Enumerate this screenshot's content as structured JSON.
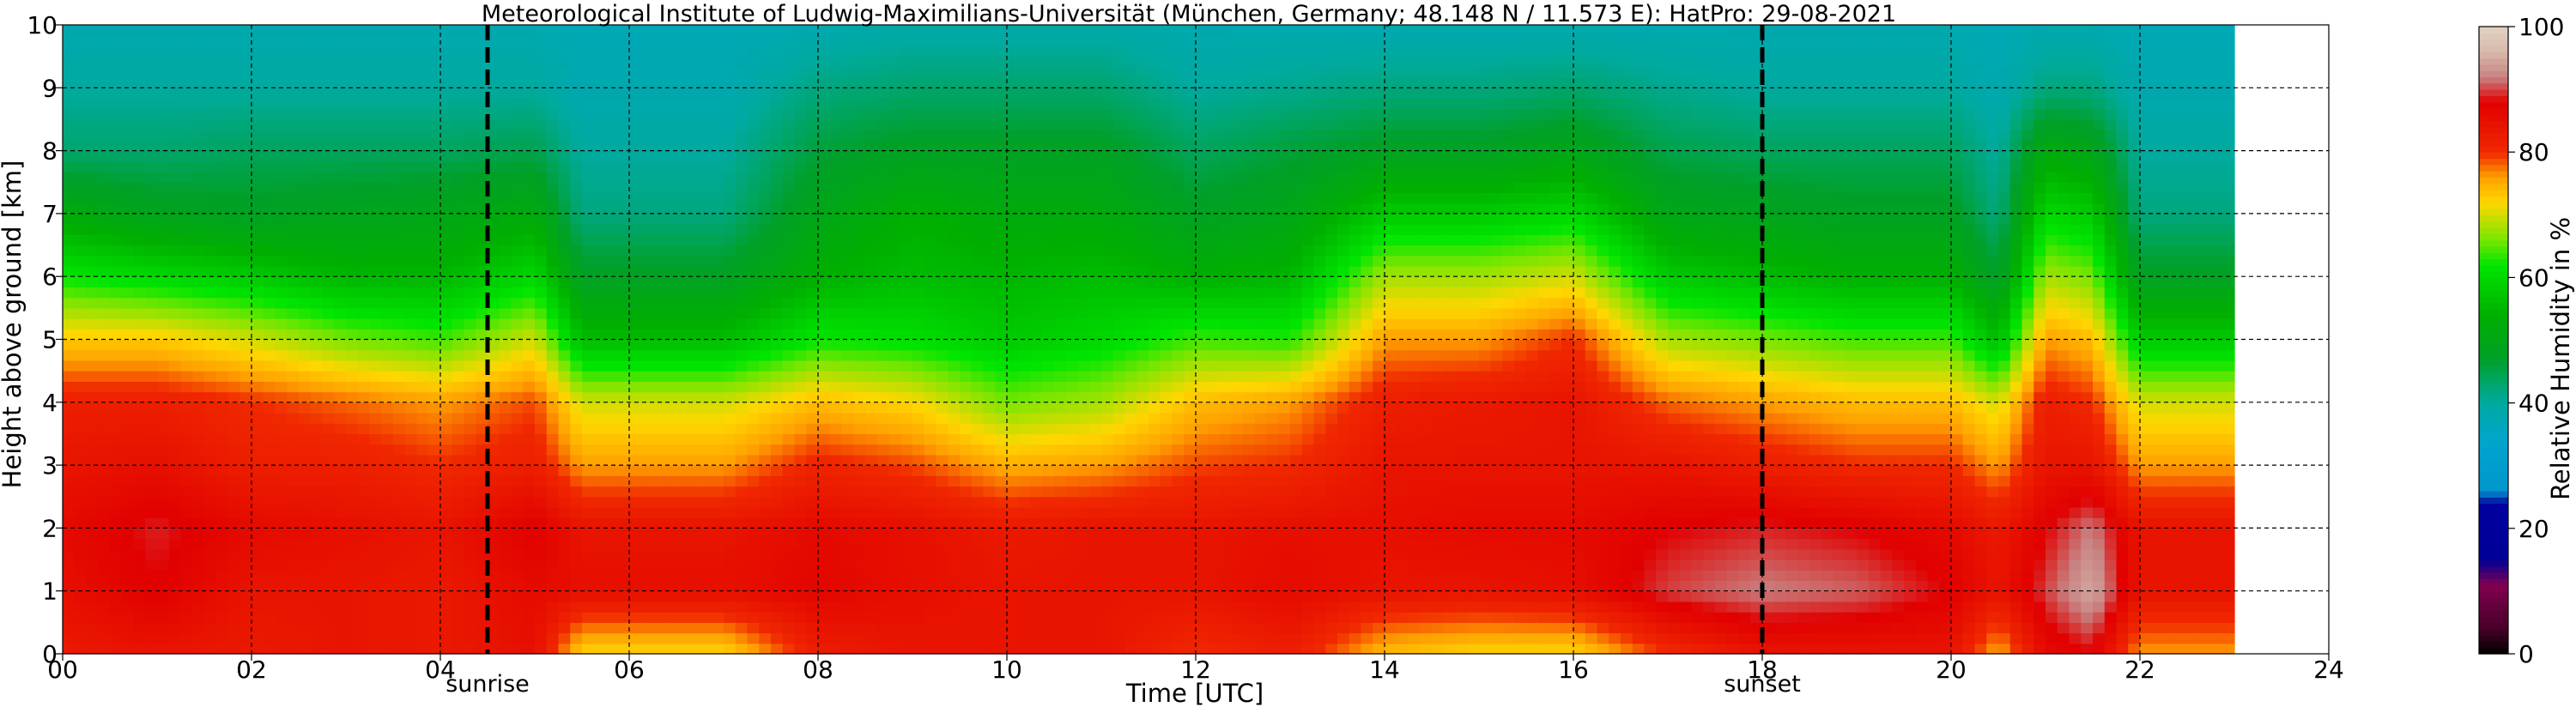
{
  "chart_data": {
    "type": "heatmap",
    "title": "Meteorological Institute of Ludwig-Maximilians-Universität (München, Germany; 48.148 N / 11.573 E):    HatPro: 29-08-2021",
    "xlabel": "Time [UTC]",
    "ylabel": "Height above ground [km]",
    "xlim": [
      0,
      24
    ],
    "ylim": [
      0,
      10
    ],
    "x_ticks": [
      0,
      2,
      4,
      6,
      8,
      10,
      12,
      14,
      16,
      18,
      20,
      22,
      24
    ],
    "x_tick_labels": [
      "00",
      "02",
      "04",
      "06",
      "08",
      "10",
      "12",
      "14",
      "16",
      "18",
      "20",
      "22",
      "24"
    ],
    "y_ticks": [
      0,
      1,
      2,
      3,
      4,
      5,
      6,
      7,
      8,
      9,
      10
    ],
    "y_tick_labels": [
      "0",
      "1",
      "2",
      "3",
      "4",
      "5",
      "6",
      "7",
      "8",
      "9",
      "10"
    ],
    "grid": true,
    "data_end_time": 23.0,
    "events": [
      {
        "label": "sunrise",
        "time": 4.5
      },
      {
        "label": "sunset",
        "time": 18.0
      }
    ],
    "colorbar": {
      "label": "Relative Humidity in %",
      "range": [
        0,
        100
      ],
      "ticks": [
        0,
        20,
        40,
        60,
        80,
        100
      ],
      "tick_labels": [
        "0",
        "20",
        "40",
        "60",
        "80",
        "100"
      ]
    },
    "series": [
      {
        "time": 0.0,
        "rh": [
          83,
          85,
          86,
          84,
          82,
          73,
          62,
          52,
          43,
          40,
          38
        ]
      },
      {
        "time": 1.0,
        "rh": [
          84,
          88,
          89,
          85,
          82,
          73,
          60,
          49,
          43,
          40,
          38
        ]
      },
      {
        "time": 2.0,
        "rh": [
          83,
          84,
          86,
          82,
          80,
          70,
          58,
          48,
          44,
          40,
          38
        ]
      },
      {
        "time": 3.0,
        "rh": [
          84,
          84,
          85,
          82,
          78,
          66,
          55,
          49,
          44,
          40,
          38
        ]
      },
      {
        "time": 4.0,
        "rh": [
          83,
          83,
          84,
          80,
          76,
          64,
          55,
          50,
          44,
          40,
          38
        ]
      },
      {
        "time": 5.0,
        "rh": [
          85,
          86,
          88,
          82,
          79,
          70,
          60,
          52,
          45,
          40,
          38
        ]
      },
      {
        "time": 5.5,
        "rh": [
          72,
          85,
          84,
          76,
          70,
          56,
          48,
          42,
          40,
          38,
          37
        ]
      },
      {
        "time": 7.0,
        "rh": [
          72,
          85,
          84,
          76,
          70,
          56,
          48,
          42,
          40,
          38,
          37
        ]
      },
      {
        "time": 8.0,
        "rh": [
          82,
          87,
          86,
          81,
          74,
          62,
          54,
          50,
          46,
          42,
          38
        ]
      },
      {
        "time": 9.0,
        "rh": [
          84,
          85,
          85,
          79,
          72,
          61,
          56,
          54,
          48,
          43,
          39
        ]
      },
      {
        "time": 10.0,
        "rh": [
          84,
          84,
          83,
          75,
          66,
          58,
          55,
          52,
          48,
          43,
          39
        ]
      },
      {
        "time": 11.0,
        "rh": [
          84,
          84,
          84,
          76,
          68,
          60,
          56,
          52,
          48,
          43,
          39
        ]
      },
      {
        "time": 12.0,
        "rh": [
          80,
          84,
          84,
          79,
          74,
          64,
          54,
          48,
          44,
          40,
          38
        ]
      },
      {
        "time": 13.0,
        "rh": [
          82,
          86,
          85,
          80,
          76,
          63,
          55,
          50,
          46,
          41,
          38
        ]
      },
      {
        "time": 14.0,
        "rh": [
          74,
          84,
          85,
          84,
          82,
          76,
          68,
          58,
          48,
          42,
          38
        ]
      },
      {
        "time": 15.0,
        "rh": [
          72,
          84,
          86,
          84,
          83,
          76,
          68,
          58,
          48,
          42,
          38
        ]
      },
      {
        "time": 16.0,
        "rh": [
          72,
          85,
          86,
          84,
          84,
          80,
          70,
          60,
          50,
          43,
          38
        ]
      },
      {
        "time": 17.0,
        "rh": [
          80,
          90,
          88,
          84,
          78,
          68,
          58,
          50,
          45,
          41,
          38
        ]
      },
      {
        "time": 18.0,
        "rh": [
          84,
          92,
          89,
          82,
          76,
          66,
          56,
          49,
          44,
          40,
          38
        ]
      },
      {
        "time": 19.0,
        "rh": [
          84,
          91,
          88,
          80,
          74,
          64,
          54,
          48,
          44,
          40,
          38
        ]
      },
      {
        "time": 20.0,
        "rh": [
          84,
          88,
          86,
          80,
          74,
          64,
          54,
          48,
          44,
          40,
          38
        ]
      },
      {
        "time": 20.5,
        "rh": [
          75,
          84,
          83,
          76,
          70,
          56,
          47,
          42,
          40,
          38,
          37
        ]
      },
      {
        "time": 21.0,
        "rh": [
          86,
          90,
          88,
          84,
          82,
          76,
          68,
          60,
          52,
          42,
          38
        ]
      },
      {
        "time": 21.5,
        "rh": [
          88,
          95,
          92,
          84,
          80,
          74,
          66,
          58,
          50,
          42,
          38
        ]
      },
      {
        "time": 22.0,
        "rh": [
          76,
          84,
          84,
          76,
          70,
          58,
          48,
          42,
          40,
          38,
          37
        ]
      },
      {
        "time": 23.0,
        "rh": [
          76,
          84,
          84,
          76,
          70,
          58,
          48,
          42,
          40,
          38,
          37
        ]
      }
    ]
  }
}
